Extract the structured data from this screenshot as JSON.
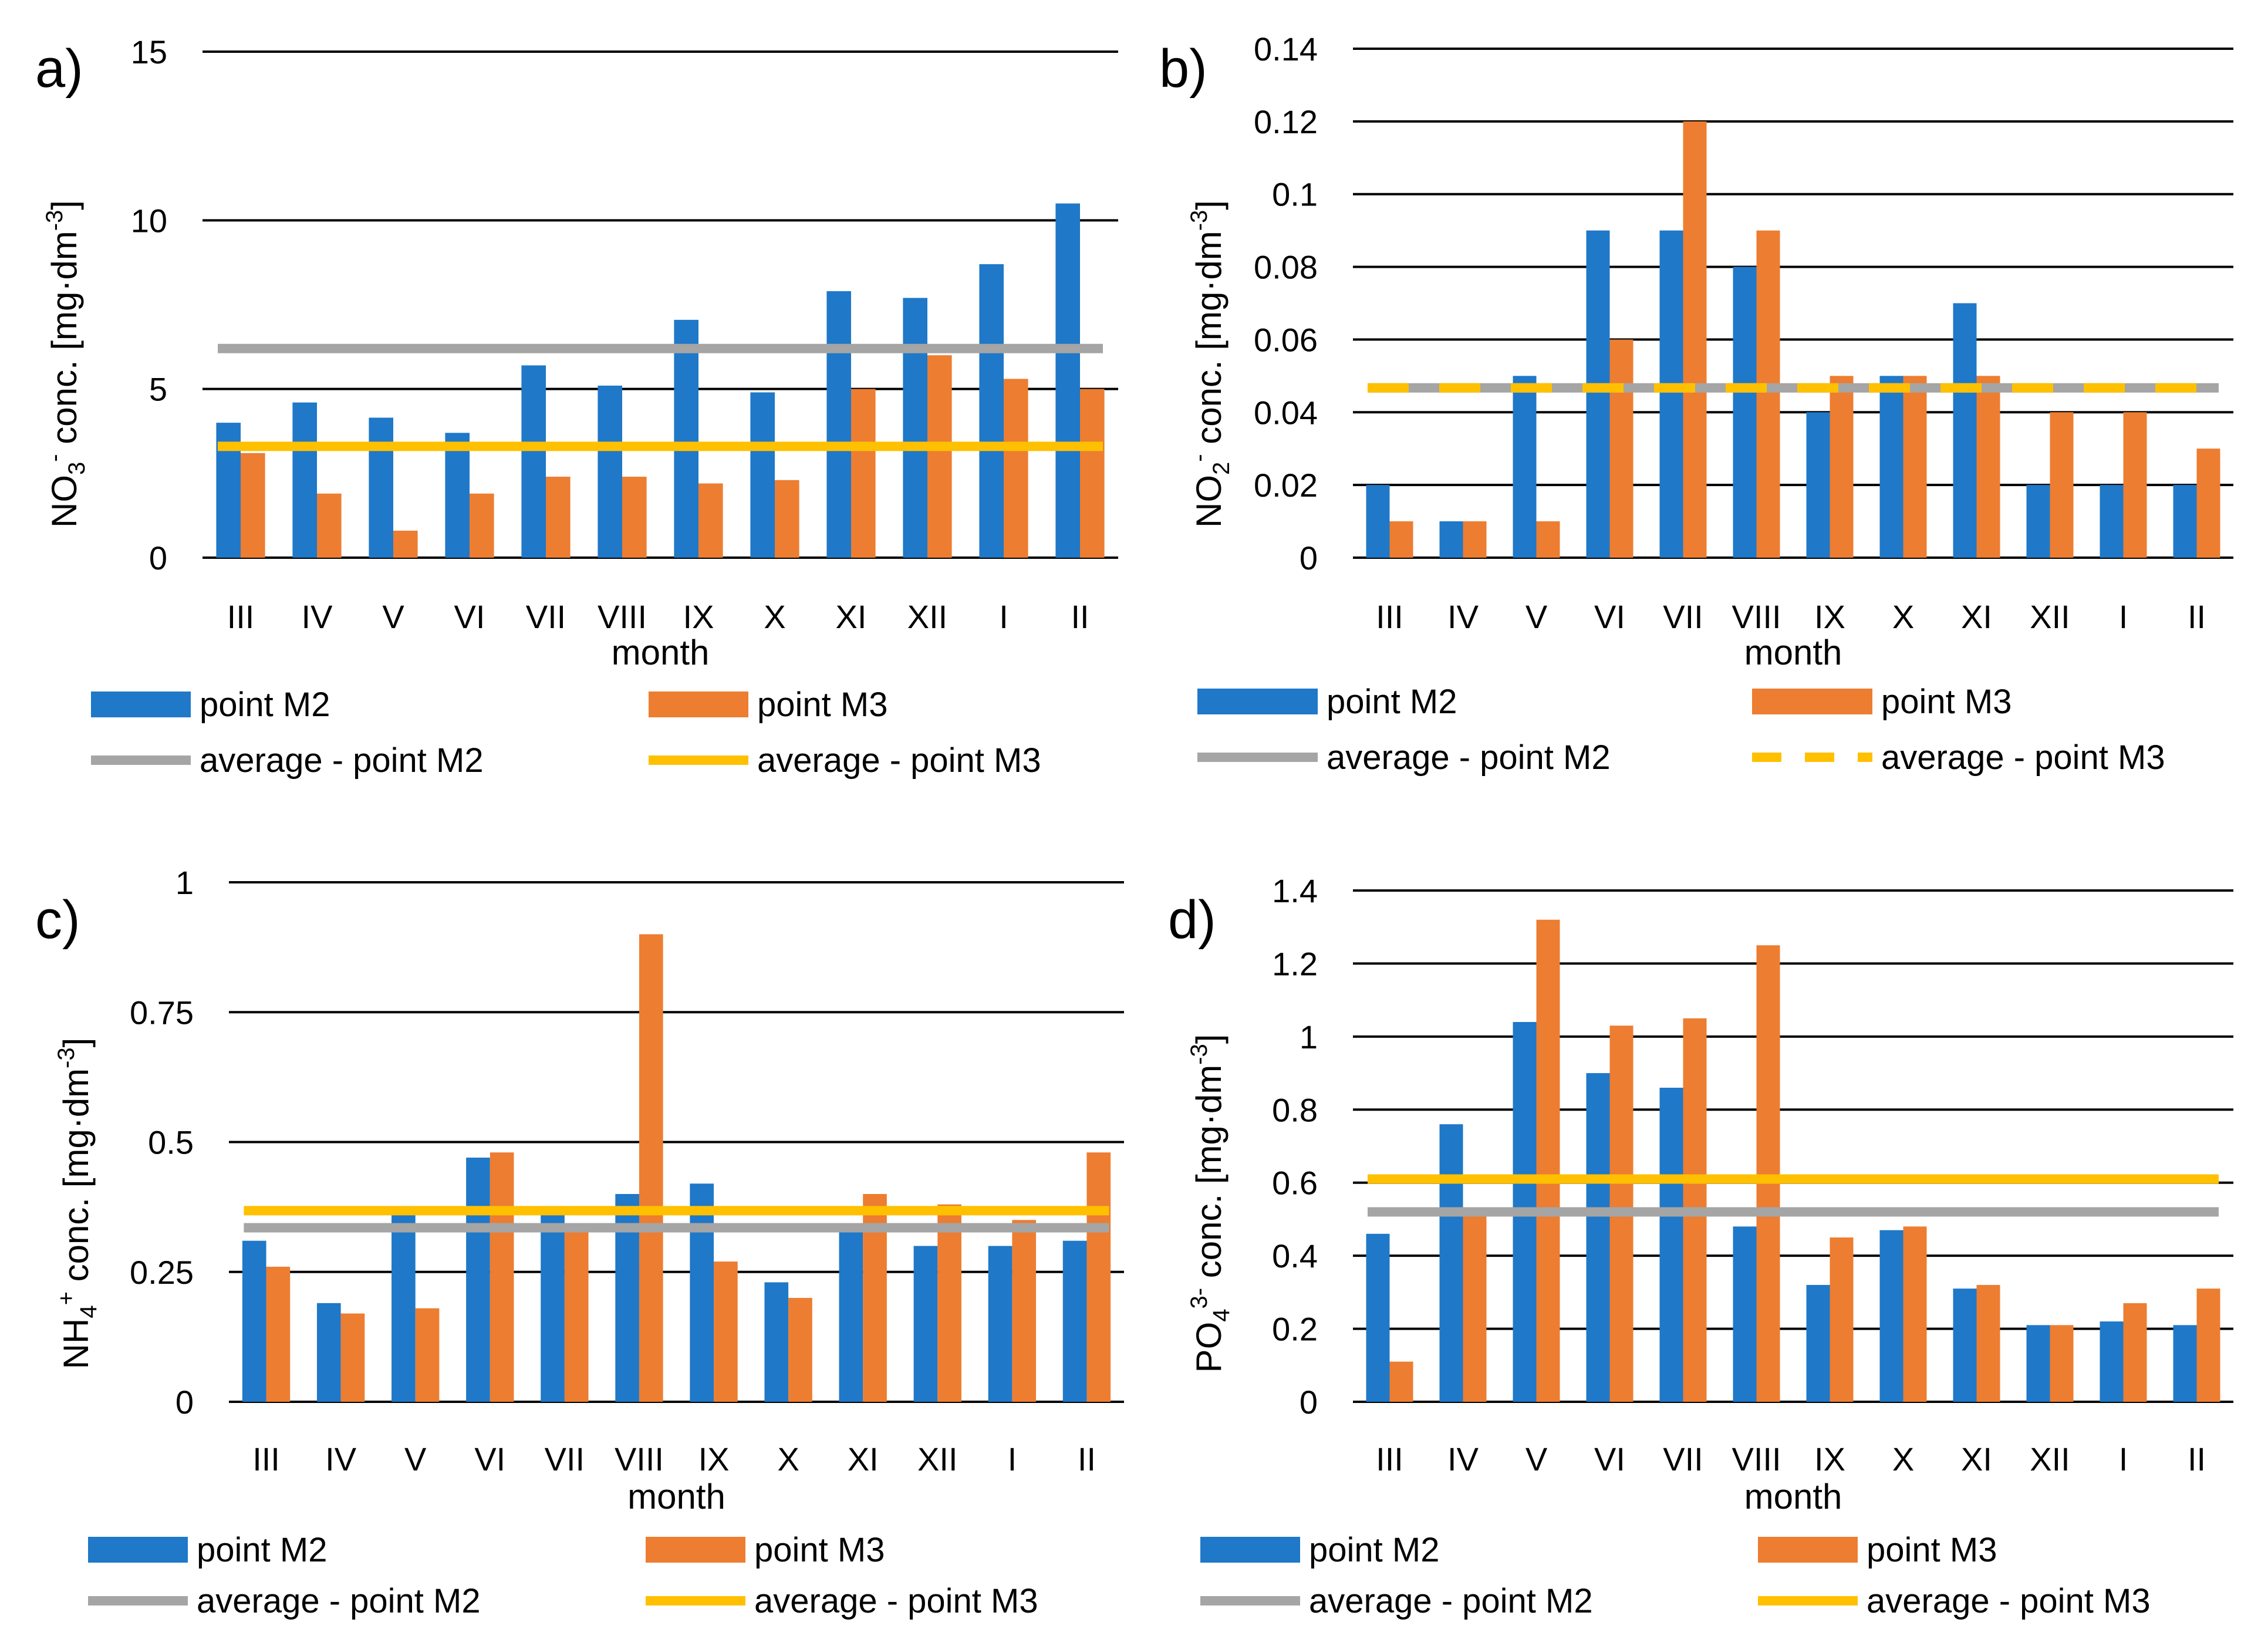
{
  "colors": {
    "m2": "#1F78C8",
    "m3": "#ED7D31",
    "avg_m2": "#A5A5A5",
    "avg_m3": "#FFC000",
    "grid": "#000000"
  },
  "chart_data": [
    {
      "type": "bar",
      "panel": "a)",
      "categories": [
        "III",
        "IV",
        "V",
        "VI",
        "VII",
        "VIII",
        "IX",
        "X",
        "XI",
        "XII",
        "I",
        "II"
      ],
      "xlabel": "month",
      "ylabel": {
        "pre": "NO",
        "sub": "3",
        "sup": "-",
        "post": " conc. [mg·dm",
        "unit_sup": "-3",
        "end": "]"
      },
      "ylim": [
        0,
        15
      ],
      "yticks": [
        0,
        5,
        10,
        15
      ],
      "tick_labels": [
        "0",
        "5",
        "10",
        "15"
      ],
      "series": [
        {
          "name": "point M2",
          "values": [
            4.0,
            4.6,
            4.15,
            3.7,
            5.7,
            5.1,
            7.05,
            4.9,
            7.9,
            7.7,
            8.7,
            10.5
          ]
        },
        {
          "name": "point M3",
          "values": [
            3.1,
            1.9,
            0.8,
            1.9,
            2.4,
            2.4,
            2.2,
            2.3,
            5.0,
            6.0,
            5.3,
            5.0
          ]
        }
      ],
      "averages": [
        {
          "name": "average - point M2",
          "value": 6.2,
          "dashed": false
        },
        {
          "name": "average - point M3",
          "value": 3.3,
          "dashed": false
        }
      ]
    },
    {
      "type": "bar",
      "panel": "b)",
      "categories": [
        "III",
        "IV",
        "V",
        "VI",
        "VII",
        "VIII",
        "IX",
        "X",
        "XI",
        "XII",
        "I",
        "II"
      ],
      "xlabel": "month",
      "ylabel": {
        "pre": "NO",
        "sub": "2",
        "sup": "-",
        "post": " conc. [mg·dm",
        "unit_sup": "-3",
        "end": "]"
      },
      "ylim": [
        0,
        0.14
      ],
      "yticks": [
        0,
        0.02,
        0.04,
        0.06,
        0.08,
        0.1,
        0.12,
        0.14
      ],
      "tick_labels": [
        "0",
        "0.02",
        "0.04",
        "0.06",
        "0.08",
        "0.1",
        "0.12",
        "0.14"
      ],
      "series": [
        {
          "name": "point M2",
          "values": [
            0.02,
            0.01,
            0.05,
            0.09,
            0.09,
            0.08,
            0.04,
            0.05,
            0.07,
            0.02,
            0.02,
            0.02
          ]
        },
        {
          "name": "point M3",
          "values": [
            0.01,
            0.01,
            0.01,
            0.06,
            0.12,
            0.09,
            0.05,
            0.05,
            0.05,
            0.04,
            0.04,
            0.03
          ]
        }
      ],
      "averages": [
        {
          "name": "average - point M2",
          "value": 0.0467,
          "dashed": false
        },
        {
          "name": "average - point M3",
          "value": 0.0467,
          "dashed": true
        }
      ]
    },
    {
      "type": "bar",
      "panel": "c)",
      "categories": [
        "III",
        "IV",
        "V",
        "VI",
        "VII",
        "VIII",
        "IX",
        "X",
        "XI",
        "XII",
        "I",
        "II"
      ],
      "xlabel": "month",
      "ylabel": {
        "pre": "NH",
        "sub": "4",
        "sup": "+",
        "post": " conc. [mg·dm",
        "unit_sup": "-3",
        "end": "]"
      },
      "ylim": [
        0,
        1
      ],
      "yticks": [
        0,
        0.25,
        0.5,
        0.75,
        1
      ],
      "tick_labels": [
        "0",
        "0.25",
        "0.5",
        "0.75",
        "1"
      ],
      "series": [
        {
          "name": "point M2",
          "values": [
            0.31,
            0.19,
            0.36,
            0.47,
            0.36,
            0.4,
            0.42,
            0.23,
            0.34,
            0.3,
            0.3,
            0.31
          ]
        },
        {
          "name": "point M3",
          "values": [
            0.26,
            0.17,
            0.18,
            0.48,
            0.33,
            0.9,
            0.27,
            0.2,
            0.4,
            0.38,
            0.35,
            0.48
          ]
        }
      ],
      "averages": [
        {
          "name": "average - point M2",
          "value": 0.335,
          "dashed": false
        },
        {
          "name": "average - point M3",
          "value": 0.368,
          "dashed": false
        }
      ]
    },
    {
      "type": "bar",
      "panel": "d)",
      "categories": [
        "III",
        "IV",
        "V",
        "VI",
        "VII",
        "VIII",
        "IX",
        "X",
        "XI",
        "XII",
        "I",
        "II"
      ],
      "xlabel": "month",
      "ylabel": {
        "pre": "PO",
        "sub": "4",
        "sup": "3-",
        "post": " conc. [mg·dm",
        "unit_sup": "-3",
        "end": "]"
      },
      "ylim": [
        0,
        1.4
      ],
      "yticks": [
        0,
        0.2,
        0.4,
        0.6,
        0.8,
        1,
        1.2,
        1.4
      ],
      "tick_labels": [
        "0",
        "0.2",
        "0.4",
        "0.6",
        "0.8",
        "1",
        "1.2",
        "1.4"
      ],
      "series": [
        {
          "name": "point M2",
          "values": [
            0.46,
            0.76,
            1.04,
            0.9,
            0.86,
            0.48,
            0.32,
            0.47,
            0.31,
            0.21,
            0.22,
            0.21
          ]
        },
        {
          "name": "point M3",
          "values": [
            0.11,
            0.52,
            1.32,
            1.03,
            1.05,
            1.25,
            0.45,
            0.48,
            0.32,
            0.21,
            0.27,
            0.31
          ]
        }
      ],
      "averages": [
        {
          "name": "average - point M2",
          "value": 0.52,
          "dashed": false
        },
        {
          "name": "average - point M3",
          "value": 0.61,
          "dashed": false
        }
      ]
    }
  ]
}
